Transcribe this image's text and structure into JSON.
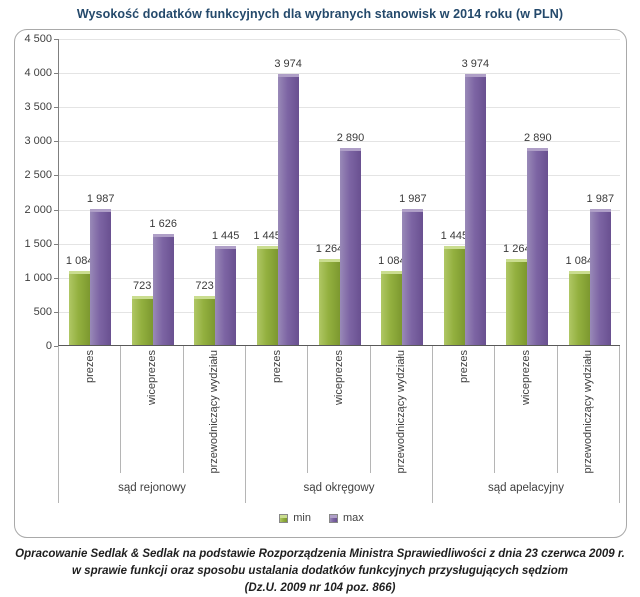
{
  "chart_data": {
    "type": "bar",
    "title": "Wysokość dodatków funkcyjnych dla wybranych stanowisk w 2014 roku (w PLN)",
    "ylim": [
      0,
      4500
    ],
    "ytick_step": 500,
    "grid": true,
    "legend_position": "bottom",
    "value_labels": true,
    "groups": [
      {
        "label": "sąd rejonowy"
      },
      {
        "label": "sąd okręgowy"
      },
      {
        "label": "sąd apelacyjny"
      }
    ],
    "categories": [
      "prezes",
      "wiceprezes",
      "przewodniczący wydziału",
      "prezes",
      "wiceprezes",
      "przewodniczący wydziału",
      "prezes",
      "wiceprezes",
      "przewodniczący wydziału"
    ],
    "series": [
      {
        "name": "min",
        "color": "#93b03f",
        "values": [
          1084,
          723,
          723,
          1445,
          1264,
          1084,
          1445,
          1264,
          1084
        ]
      },
      {
        "name": "max",
        "color": "#7d65a4",
        "values": [
          1987,
          1626,
          1445,
          3974,
          2890,
          1987,
          3974,
          2890,
          1987
        ]
      }
    ]
  },
  "footer": {
    "lines": [
      "Opracowanie Sedlak & Sedlak na podstawie Rozporządzenia Ministra Sprawiedliwości z dnia 23 czerwca 2009 r.",
      "w sprawie funkcji oraz sposobu ustalania dodatków funkcyjnych przysługujących sędziom",
      "(Dz.U. 2009 nr 104 poz. 866)"
    ]
  }
}
